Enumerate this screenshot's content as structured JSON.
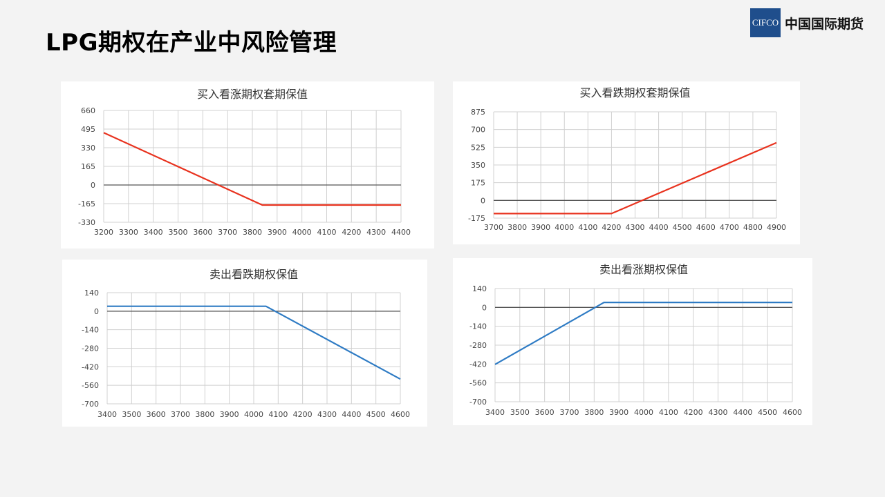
{
  "page": {
    "title": "LPG期权在产业中风险管理"
  },
  "logo": {
    "badge": "CIFCO",
    "name": "中国国际期货"
  },
  "colors": {
    "red": "#e8321e",
    "blue": "#2e7bc4",
    "zero": "#555555",
    "grid": "#d0d0d0"
  },
  "chart_data": [
    {
      "type": "line",
      "title": "买入看涨期权套期保值",
      "xlabel": "",
      "ylabel": "",
      "x_ticks": [
        3200,
        3300,
        3400,
        3500,
        3600,
        3700,
        3800,
        3900,
        4000,
        4100,
        4200,
        4300,
        4400
      ],
      "y_ticks": [
        660,
        495,
        330,
        165,
        0,
        -165,
        -330
      ],
      "xlim": [
        3200,
        4400
      ],
      "ylim": [
        -330,
        660
      ],
      "grid": true,
      "series": [
        {
          "color": "#e8321e",
          "x": [
            3200,
            3840,
            4400
          ],
          "y": [
            463,
            -177,
            -177
          ]
        }
      ]
    },
    {
      "type": "line",
      "title": "买入看跌期权套期保值",
      "xlabel": "",
      "ylabel": "",
      "x_ticks": [
        3700,
        3800,
        3900,
        4000,
        4100,
        4200,
        4300,
        4400,
        4500,
        4600,
        4700,
        4800,
        4900
      ],
      "y_ticks": [
        875,
        700,
        525,
        350,
        175,
        0,
        -175
      ],
      "xlim": [
        3700,
        4900
      ],
      "ylim": [
        -175,
        875
      ],
      "grid": true,
      "series": [
        {
          "color": "#e8321e",
          "x": [
            3700,
            4200,
            4900
          ],
          "y": [
            -130,
            -130,
            570
          ]
        }
      ]
    },
    {
      "type": "line",
      "title": "卖出看跌期权保值",
      "xlabel": "",
      "ylabel": "",
      "x_ticks": [
        3400,
        3500,
        3600,
        3700,
        3800,
        3900,
        4000,
        4100,
        4200,
        4300,
        4400,
        4500,
        4600
      ],
      "y_ticks": [
        140,
        0,
        -140,
        -280,
        -420,
        -560,
        -700
      ],
      "xlim": [
        3400,
        4600
      ],
      "ylim": [
        -700,
        140
      ],
      "grid": true,
      "series": [
        {
          "color": "#2e7bc4",
          "x": [
            3400,
            4050,
            4600
          ],
          "y": [
            37,
            37,
            -513
          ]
        }
      ]
    },
    {
      "type": "line",
      "title": "卖出看涨期权保值",
      "xlabel": "",
      "ylabel": "",
      "x_ticks": [
        3400,
        3500,
        3600,
        3700,
        3800,
        3900,
        4000,
        4100,
        4200,
        4300,
        4400,
        4500,
        4600
      ],
      "y_ticks": [
        140,
        0,
        -140,
        -280,
        -420,
        -560,
        -700
      ],
      "xlim": [
        3400,
        4600
      ],
      "ylim": [
        -700,
        140
      ],
      "grid": true,
      "series": [
        {
          "color": "#2e7bc4",
          "x": [
            3400,
            3840,
            4600
          ],
          "y": [
            -423,
            37,
            37
          ]
        }
      ]
    }
  ]
}
